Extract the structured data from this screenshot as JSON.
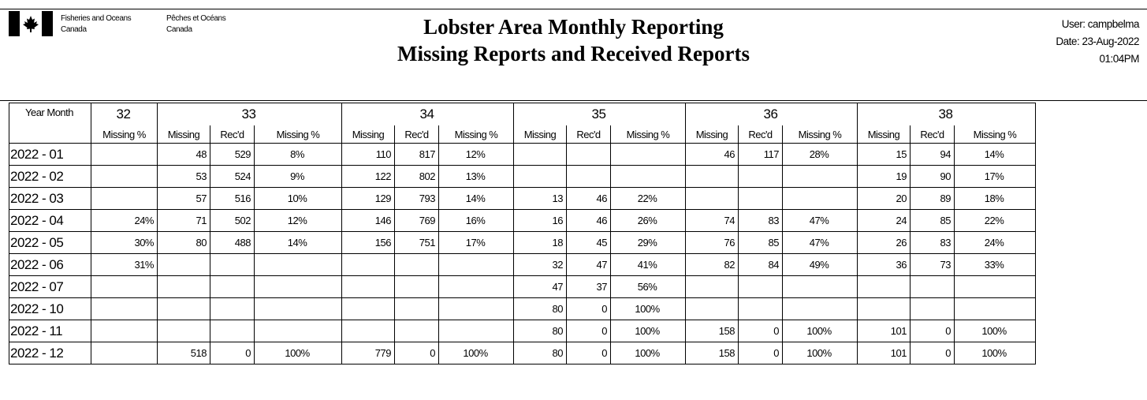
{
  "header": {
    "dept_en": [
      "Fisheries and Oceans",
      "Canada"
    ],
    "dept_fr": [
      "Pêches et Océans",
      "Canada"
    ],
    "title_line1": "Lobster Area Monthly Reporting",
    "title_line2": "Missing Reports and Received Reports",
    "user": "User: campbelma",
    "date": "Date: 23-Aug-2022",
    "time": "01:04PM"
  },
  "table": {
    "year_month_label": "Year Month",
    "areas": [
      "32",
      "33",
      "34",
      "35",
      "36",
      "38"
    ],
    "col_missing": "Missing",
    "col_recd": "Rec'd",
    "col_missing_pct": "Missing %",
    "rows": [
      {
        "period": "2022 - 01",
        "a32": [
          ""
        ],
        "a33": [
          "48",
          "529",
          "8%"
        ],
        "a34": [
          "110",
          "817",
          "12%"
        ],
        "a35": [
          "",
          "",
          ""
        ],
        "a36": [
          "46",
          "117",
          "28%"
        ],
        "a38": [
          "15",
          "94",
          "14%"
        ]
      },
      {
        "period": "2022 - 02",
        "a32": [
          ""
        ],
        "a33": [
          "53",
          "524",
          "9%"
        ],
        "a34": [
          "122",
          "802",
          "13%"
        ],
        "a35": [
          "",
          "",
          ""
        ],
        "a36": [
          "",
          "",
          ""
        ],
        "a38": [
          "19",
          "90",
          "17%"
        ]
      },
      {
        "period": "2022 - 03",
        "a32": [
          ""
        ],
        "a33": [
          "57",
          "516",
          "10%"
        ],
        "a34": [
          "129",
          "793",
          "14%"
        ],
        "a35": [
          "13",
          "46",
          "22%"
        ],
        "a36": [
          "",
          "",
          ""
        ],
        "a38": [
          "20",
          "89",
          "18%"
        ]
      },
      {
        "period": "2022 - 04",
        "a32": [
          "24%"
        ],
        "a33": [
          "71",
          "502",
          "12%"
        ],
        "a34": [
          "146",
          "769",
          "16%"
        ],
        "a35": [
          "16",
          "46",
          "26%"
        ],
        "a36": [
          "74",
          "83",
          "47%"
        ],
        "a38": [
          "24",
          "85",
          "22%"
        ]
      },
      {
        "period": "2022 - 05",
        "a32": [
          "30%"
        ],
        "a33": [
          "80",
          "488",
          "14%"
        ],
        "a34": [
          "156",
          "751",
          "17%"
        ],
        "a35": [
          "18",
          "45",
          "29%"
        ],
        "a36": [
          "76",
          "85",
          "47%"
        ],
        "a38": [
          "26",
          "83",
          "24%"
        ]
      },
      {
        "period": "2022 - 06",
        "a32": [
          "31%"
        ],
        "a33": [
          "",
          "",
          ""
        ],
        "a34": [
          "",
          "",
          ""
        ],
        "a35": [
          "32",
          "47",
          "41%"
        ],
        "a36": [
          "82",
          "84",
          "49%"
        ],
        "a38": [
          "36",
          "73",
          "33%"
        ]
      },
      {
        "period": "2022 - 07",
        "a32": [
          ""
        ],
        "a33": [
          "",
          "",
          ""
        ],
        "a34": [
          "",
          "",
          ""
        ],
        "a35": [
          "47",
          "37",
          "56%"
        ],
        "a36": [
          "",
          "",
          ""
        ],
        "a38": [
          "",
          "",
          ""
        ]
      },
      {
        "period": "2022 - 10",
        "a32": [
          ""
        ],
        "a33": [
          "",
          "",
          ""
        ],
        "a34": [
          "",
          "",
          ""
        ],
        "a35": [
          "80",
          "0",
          "100%"
        ],
        "a36": [
          "",
          "",
          ""
        ],
        "a38": [
          "",
          "",
          ""
        ]
      },
      {
        "period": "2022 - 11",
        "a32": [
          ""
        ],
        "a33": [
          "",
          "",
          ""
        ],
        "a34": [
          "",
          "",
          ""
        ],
        "a35": [
          "80",
          "0",
          "100%"
        ],
        "a36": [
          "158",
          "0",
          "100%"
        ],
        "a38": [
          "101",
          "0",
          "100%"
        ]
      },
      {
        "period": "2022 - 12",
        "a32": [
          ""
        ],
        "a33": [
          "518",
          "0",
          "100%"
        ],
        "a34": [
          "779",
          "0",
          "100%"
        ],
        "a35": [
          "80",
          "0",
          "100%"
        ],
        "a36": [
          "158",
          "0",
          "100%"
        ],
        "a38": [
          "101",
          "0",
          "100%"
        ]
      }
    ]
  }
}
